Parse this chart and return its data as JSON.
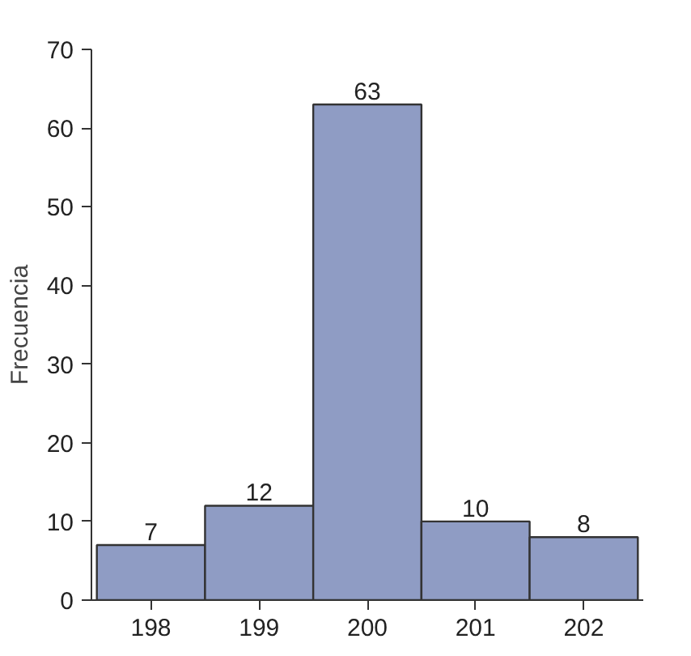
{
  "chart_data": {
    "type": "histogram",
    "ylabel": "Frecuencia",
    "bins": [
      197.5,
      198.5,
      199.5,
      200.5,
      201.5,
      202.5
    ],
    "values": [
      7,
      12,
      63,
      10,
      8
    ],
    "color": "#8f9cc4",
    "xlim": [
      197.45,
      202.55
    ],
    "ylim": [
      0,
      70
    ],
    "xticks": [
      198,
      199,
      200,
      201,
      202
    ],
    "yticks": [
      0,
      10,
      20,
      30,
      40,
      50,
      60,
      70
    ],
    "data_labels": true,
    "grid": false
  }
}
